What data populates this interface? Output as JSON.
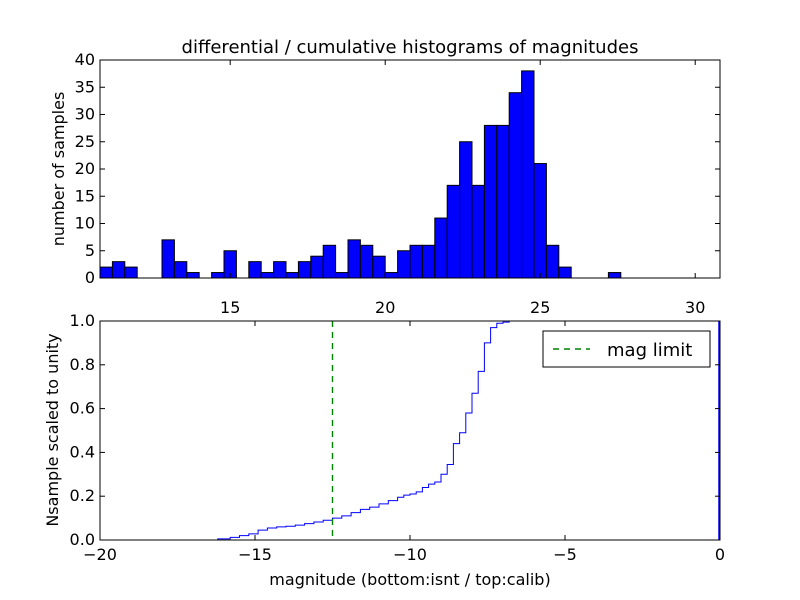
{
  "figure_title": "differential / cumulative histograms of magnitudes",
  "chart_data": [
    {
      "type": "bar",
      "title": "differential / cumulative histograms of magnitudes",
      "xlabel": "",
      "ylabel": "number of samples",
      "xlim": [
        10.8,
        30.8
      ],
      "ylim": [
        0,
        40
      ],
      "xticks": [
        15,
        20,
        25,
        30
      ],
      "yticks": [
        0,
        5,
        10,
        15,
        20,
        25,
        30,
        35,
        40
      ],
      "bin_width": 0.4,
      "bar_color": "#0000ff",
      "bin_left_edges": [
        10.8,
        11.2,
        11.6,
        12.0,
        12.4,
        12.8,
        13.2,
        13.6,
        14.0,
        14.4,
        14.8,
        15.2,
        15.6,
        16.0,
        16.4,
        16.8,
        17.2,
        17.6,
        18.0,
        18.4,
        18.8,
        19.2,
        19.6,
        20.0,
        20.4,
        20.8,
        21.2,
        21.6,
        22.0,
        22.4,
        22.8,
        23.2,
        23.6,
        24.0,
        24.4,
        24.8,
        25.2,
        25.6,
        26.0,
        26.4,
        26.8,
        27.2,
        27.6,
        28.0,
        28.4,
        28.8,
        29.2,
        29.6,
        30.0
      ],
      "values": [
        2,
        3,
        2,
        0,
        0,
        7,
        3,
        1,
        0,
        1,
        5,
        0,
        3,
        1,
        3,
        1,
        3,
        4,
        6,
        1,
        7,
        6,
        4,
        1,
        5,
        6,
        6,
        11,
        17,
        25,
        17,
        28,
        28,
        34,
        38,
        21,
        6,
        2,
        0,
        0,
        0,
        1,
        0,
        0,
        0,
        0,
        0,
        0,
        0
      ]
    },
    {
      "type": "line",
      "title": "",
      "xlabel": "magnitude (bottom:isnt / top:calib)",
      "ylabel": "Nsample scaled to unity",
      "xlim": [
        -20,
        0
      ],
      "ylim": [
        0,
        1.0
      ],
      "xticks": [
        -20,
        -15,
        -10,
        -5,
        0
      ],
      "yticks": [
        0.0,
        0.2,
        0.4,
        0.6,
        0.8,
        1.0
      ],
      "series": [
        {
          "name": "",
          "color": "#0000ff",
          "step": true,
          "x": [
            -20.0,
            -16.2,
            -15.8,
            -15.5,
            -15.2,
            -14.9,
            -14.6,
            -14.3,
            -14.0,
            -13.7,
            -13.4,
            -13.1,
            -12.8,
            -12.5,
            -12.2,
            -11.9,
            -11.6,
            -11.3,
            -11.0,
            -10.7,
            -10.4,
            -10.2,
            -10.0,
            -9.8,
            -9.6,
            -9.4,
            -9.2,
            -9.0,
            -8.8,
            -8.6,
            -8.4,
            -8.2,
            -8.0,
            -7.8,
            -7.6,
            -7.4,
            -7.2,
            -7.0,
            -6.8,
            -6.6
          ],
          "y": [
            0.0,
            0.005,
            0.012,
            0.02,
            0.028,
            0.045,
            0.055,
            0.06,
            0.063,
            0.068,
            0.075,
            0.082,
            0.09,
            0.1,
            0.11,
            0.125,
            0.14,
            0.15,
            0.165,
            0.18,
            0.195,
            0.205,
            0.21,
            0.22,
            0.24,
            0.255,
            0.265,
            0.3,
            0.345,
            0.44,
            0.49,
            0.58,
            0.67,
            0.77,
            0.9,
            0.97,
            0.99,
            0.995,
            1.0,
            1.0
          ]
        },
        {
          "name": "mag limit",
          "color": "#008000",
          "style": "dashed",
          "vline_x": -12.5
        }
      ],
      "legend": {
        "placement": "top-right",
        "entries": [
          "mag limit"
        ]
      },
      "right_edge_line": {
        "x": 0,
        "color": "#0000ff"
      }
    }
  ]
}
